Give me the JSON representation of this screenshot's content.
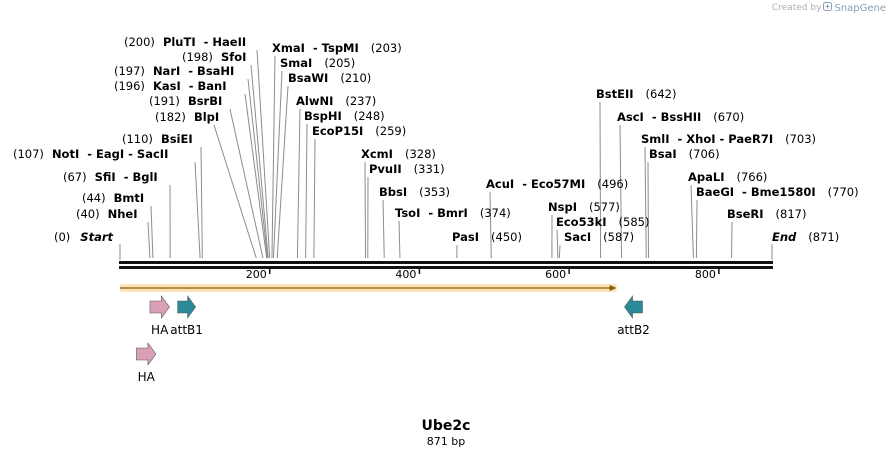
{
  "credit": {
    "prefix": "Created by",
    "brand": "SnapGene"
  },
  "map": {
    "title": "Ube2c",
    "length_label": "871 bp",
    "total_bp": 871,
    "ends": [
      {
        "pos_label": "(0)",
        "name": "Start",
        "bp": 0
      },
      {
        "pos_label": "(871)",
        "name": "End",
        "bp": 871
      }
    ],
    "ticks": [
      200,
      400,
      600,
      800
    ],
    "sites": [
      {
        "name": "PluTI",
        "extra": "- HaeII",
        "pos_label": "(200)",
        "bp": 200
      },
      {
        "name": "SfoI",
        "extra": "",
        "pos_label": "(198)",
        "bp": 198
      },
      {
        "name": "NarI",
        "extra": "- BsaHI",
        "pos_label": "(197)",
        "bp": 197
      },
      {
        "name": "KasI",
        "extra": "- BanI",
        "pos_label": "(196)",
        "bp": 196
      },
      {
        "name": "BsrBI",
        "extra": "",
        "pos_label": "(191)",
        "bp": 191
      },
      {
        "name": "BlpI",
        "extra": "",
        "pos_label": "(182)",
        "bp": 182
      },
      {
        "name": "BsiEI",
        "extra": "",
        "pos_label": "(110)",
        "bp": 110
      },
      {
        "name": "NotI",
        "extra": "- EagI - SacII",
        "pos_label": "(107)",
        "bp": 107
      },
      {
        "name": "SfiI",
        "extra": "- BglI",
        "pos_label": "(67)",
        "bp": 67
      },
      {
        "name": "BmtI",
        "extra": "",
        "pos_label": "(44)",
        "bp": 44
      },
      {
        "name": "NheI",
        "extra": "",
        "pos_label": "(40)",
        "bp": 40
      },
      {
        "name": "XmaI",
        "extra": "- TspMI",
        "pos_label": "(203)",
        "bp": 203
      },
      {
        "name": "SmaI",
        "extra": "",
        "pos_label": "(205)",
        "bp": 205
      },
      {
        "name": "BsaWI",
        "extra": "",
        "pos_label": "(210)",
        "bp": 210
      },
      {
        "name": "AlwNI",
        "extra": "",
        "pos_label": "(237)",
        "bp": 237
      },
      {
        "name": "BspHI",
        "extra": "",
        "pos_label": "(248)",
        "bp": 248
      },
      {
        "name": "EcoP15I",
        "extra": "",
        "pos_label": "(259)",
        "bp": 259
      },
      {
        "name": "XcmI",
        "extra": "",
        "pos_label": "(328)",
        "bp": 328
      },
      {
        "name": "PvuII",
        "extra": "",
        "pos_label": "(331)",
        "bp": 331
      },
      {
        "name": "BbsI",
        "extra": "",
        "pos_label": "(353)",
        "bp": 353
      },
      {
        "name": "TsoI",
        "extra": "- BmrI",
        "pos_label": "(374)",
        "bp": 374
      },
      {
        "name": "PasI",
        "extra": "",
        "pos_label": "(450)",
        "bp": 450
      },
      {
        "name": "AcuI",
        "extra": "- Eco57MI",
        "pos_label": "(496)",
        "bp": 496
      },
      {
        "name": "NspI",
        "extra": "",
        "pos_label": "(577)",
        "bp": 577
      },
      {
        "name": "Eco53kI",
        "extra": "",
        "pos_label": "(585)",
        "bp": 585
      },
      {
        "name": "SacI",
        "extra": "",
        "pos_label": "(587)",
        "bp": 587
      },
      {
        "name": "BstEII",
        "extra": "",
        "pos_label": "(642)",
        "bp": 642
      },
      {
        "name": "AscI",
        "extra": "- BssHII",
        "pos_label": "(670)",
        "bp": 670
      },
      {
        "name": "SmlI",
        "extra": "- XhoI - PaeR7I",
        "pos_label": "(703)",
        "bp": 703
      },
      {
        "name": "BsaI",
        "extra": "",
        "pos_label": "(706)",
        "bp": 706
      },
      {
        "name": "ApaLI",
        "extra": "",
        "pos_label": "(766)",
        "bp": 766
      },
      {
        "name": "BaeGI",
        "extra": "- Bme1580I",
        "pos_label": "(770)",
        "bp": 770
      },
      {
        "name": "BseRI",
        "extra": "",
        "pos_label": "(817)",
        "bp": 817
      }
    ],
    "orf": {
      "start_bp": 0,
      "end_bp": 658,
      "color": "#f5a623"
    },
    "features": [
      {
        "name": "HA",
        "start_bp": 40,
        "end_bp": 66,
        "direction": "forward",
        "color": "#d9a0b8"
      },
      {
        "name": "attB1",
        "start_bp": 77,
        "end_bp": 101,
        "direction": "forward",
        "color": "#2a8a9a"
      },
      {
        "name": "attB2",
        "start_bp": 674,
        "end_bp": 698,
        "direction": "reverse",
        "color": "#2a8a9a"
      },
      {
        "name": "HA",
        "start_bp": 22,
        "end_bp": 48,
        "direction": "forward",
        "color": "#d9a0b8"
      }
    ]
  }
}
